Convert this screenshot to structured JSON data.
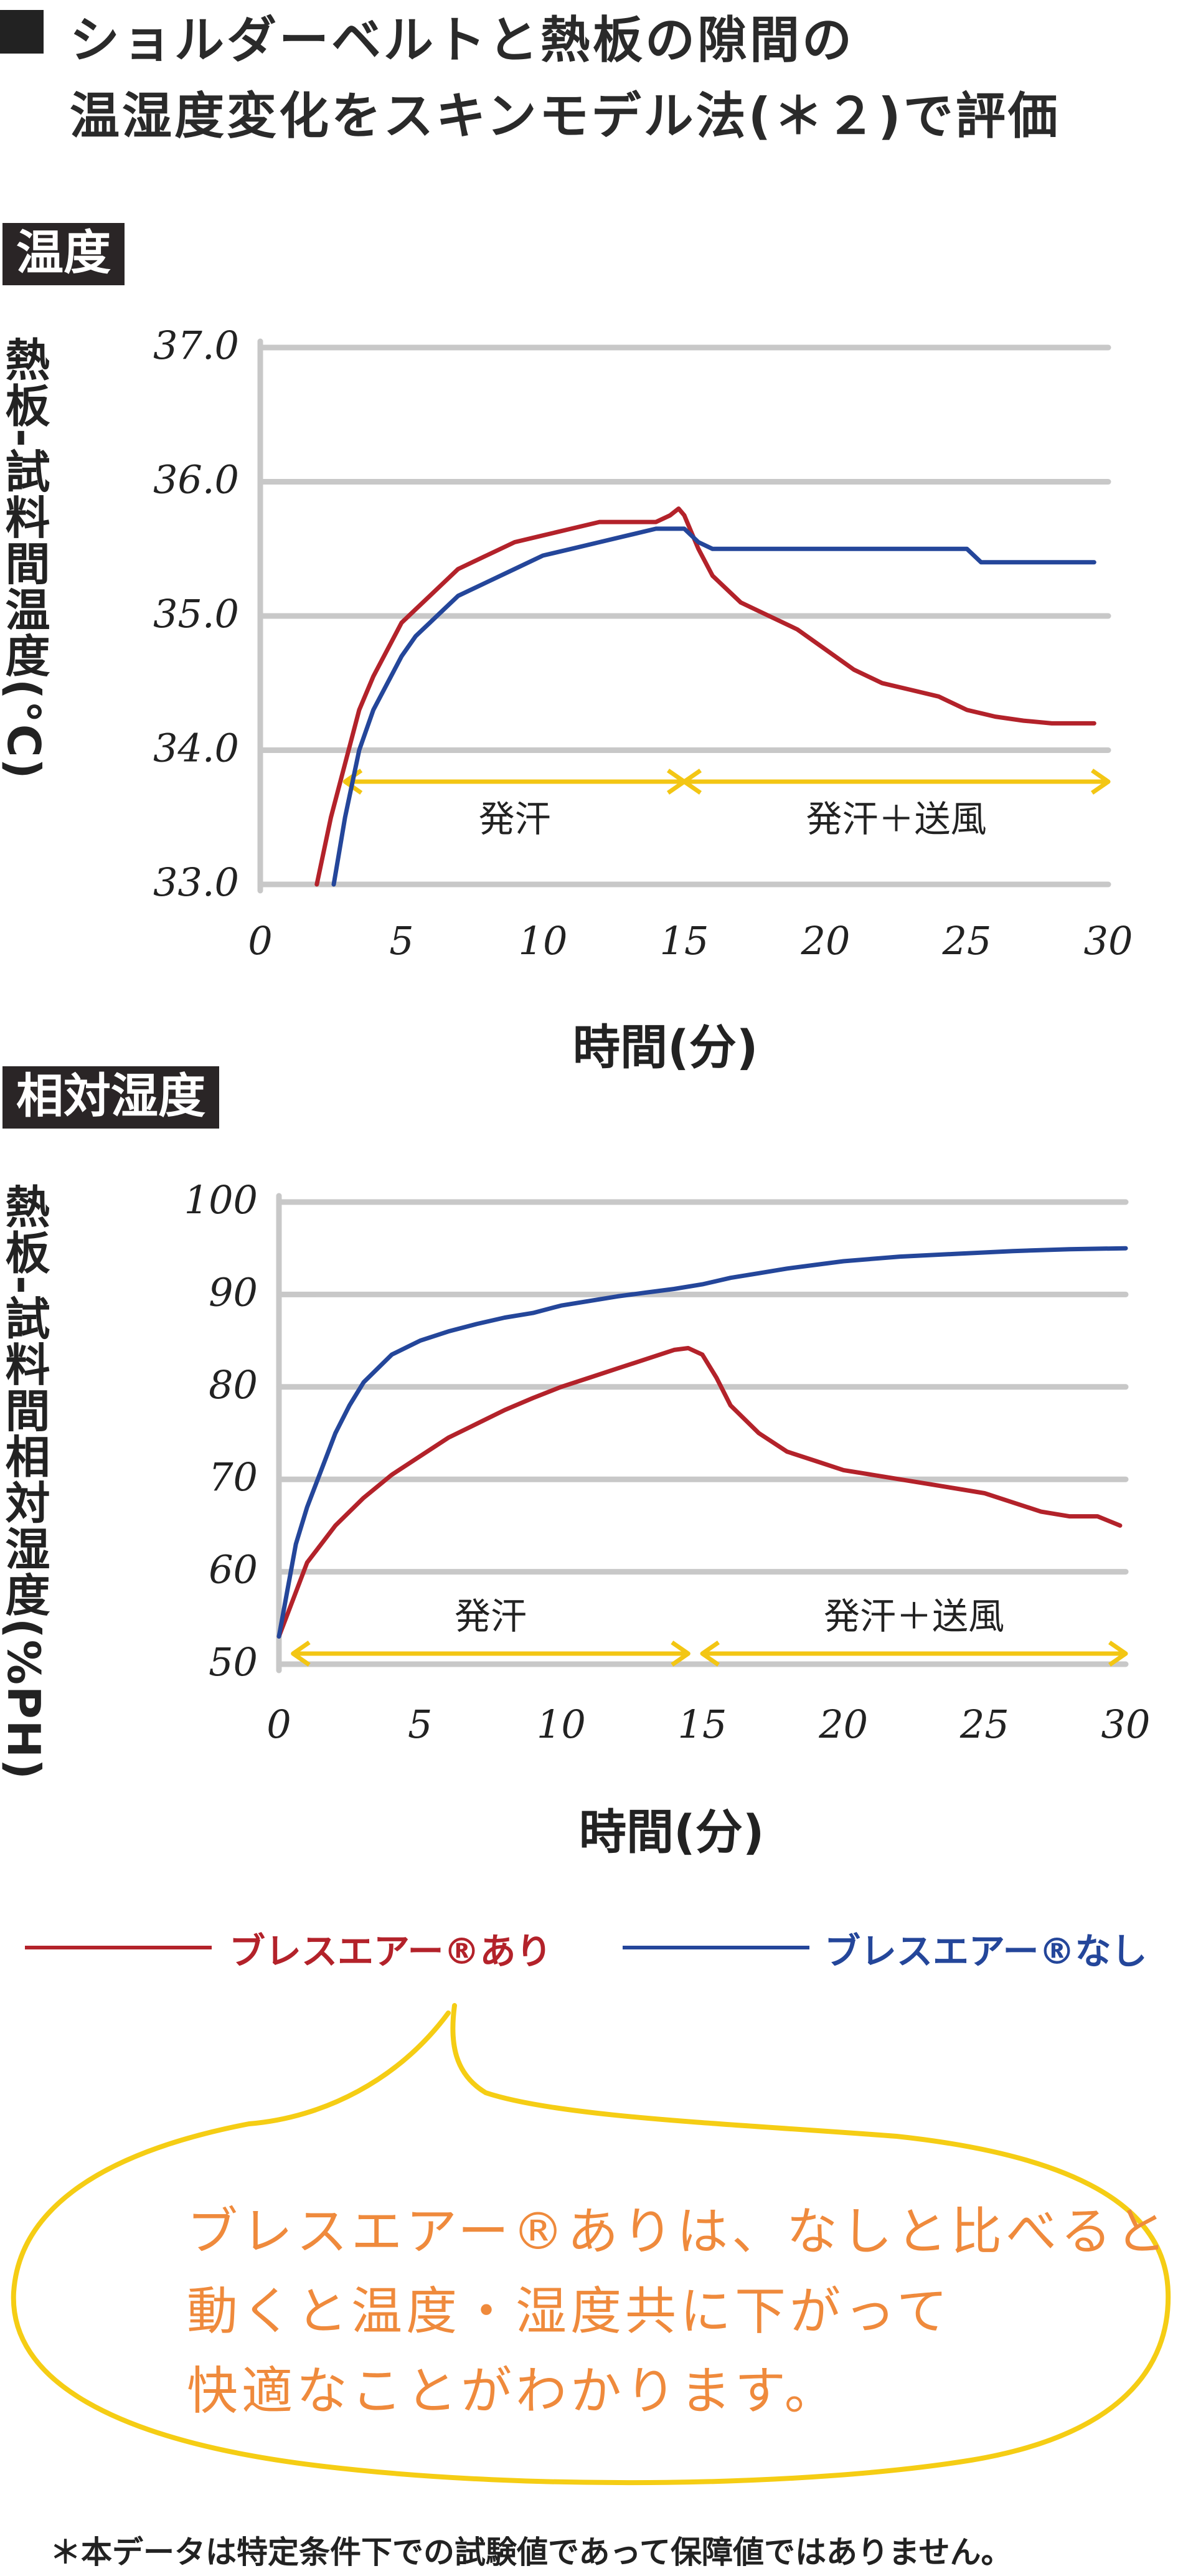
{
  "title": {
    "line1": "ショルダーベルトと熱板の隙間の",
    "line2": "温湿度変化をスキンモデル法(＊２)で評価"
  },
  "colors": {
    "with": "#b3222a",
    "without": "#24469a",
    "arrow": "#f3c614",
    "bubble": "#f5cd14",
    "bubble_text": "#ef8a3c",
    "grid": "#c8c8c8",
    "tag_bg": "#2a2526"
  },
  "legend": {
    "with": "ブレスエアー®あり",
    "without": "ブレスエアー®なし"
  },
  "bubble": {
    "lines": [
      "ブレスエアー®ありは、なしと比べると",
      "動くと温度・湿度共に下がって",
      "快適なことがわかります。"
    ]
  },
  "note": "＊本データは特定条件下での試験値であって保障値ではありません。",
  "chart_data": [
    {
      "type": "line",
      "section_label": "温度",
      "ylabel": "熱板-試料間温度(°C)",
      "xlabel": "時間(分)",
      "xlim": [
        0,
        30
      ],
      "ylim": [
        33,
        37
      ],
      "x_ticks": [
        "0",
        "5",
        "10",
        "15",
        "20",
        "25",
        "30"
      ],
      "y_ticks": [
        "33.0",
        "34.0",
        "35.0",
        "36.0",
        "37.0"
      ],
      "grid": true,
      "phases": [
        {
          "label": "発汗",
          "from": 3,
          "to": 15
        },
        {
          "label": "発汗＋送風",
          "from": 15,
          "to": 30
        }
      ],
      "series": [
        {
          "name": "ブレスエアー®あり",
          "color": "#b3222a",
          "points": [
            [
              2,
              33.0
            ],
            [
              2.5,
              33.5
            ],
            [
              3,
              33.9
            ],
            [
              3.5,
              34.3
            ],
            [
              4,
              34.55
            ],
            [
              4.5,
              34.75
            ],
            [
              5,
              34.95
            ],
            [
              5.5,
              35.05
            ],
            [
              6,
              35.15
            ],
            [
              6.5,
              35.25
            ],
            [
              7,
              35.35
            ],
            [
              8,
              35.45
            ],
            [
              9,
              35.55
            ],
            [
              10,
              35.6
            ],
            [
              11,
              35.65
            ],
            [
              12,
              35.7
            ],
            [
              13,
              35.7
            ],
            [
              14,
              35.7
            ],
            [
              14.5,
              35.75
            ],
            [
              14.8,
              35.8
            ],
            [
              15,
              35.75
            ],
            [
              15.5,
              35.5
            ],
            [
              16,
              35.3
            ],
            [
              17,
              35.1
            ],
            [
              18,
              35.0
            ],
            [
              19,
              34.9
            ],
            [
              20,
              34.75
            ],
            [
              21,
              34.6
            ],
            [
              22,
              34.5
            ],
            [
              23,
              34.45
            ],
            [
              24,
              34.4
            ],
            [
              25,
              34.3
            ],
            [
              26,
              34.25
            ],
            [
              27,
              34.22
            ],
            [
              28,
              34.2
            ],
            [
              29,
              34.2
            ],
            [
              29.5,
              34.2
            ]
          ]
        },
        {
          "name": "ブレスエアー®なし",
          "color": "#24469a",
          "points": [
            [
              2.6,
              33.0
            ],
            [
              3,
              33.5
            ],
            [
              3.5,
              34.0
            ],
            [
              4,
              34.3
            ],
            [
              4.5,
              34.5
            ],
            [
              5,
              34.7
            ],
            [
              5.5,
              34.85
            ],
            [
              6,
              34.95
            ],
            [
              6.5,
              35.05
            ],
            [
              7,
              35.15
            ],
            [
              8,
              35.25
            ],
            [
              9,
              35.35
            ],
            [
              10,
              35.45
            ],
            [
              11,
              35.5
            ],
            [
              12,
              35.55
            ],
            [
              13,
              35.6
            ],
            [
              14,
              35.65
            ],
            [
              15,
              35.65
            ],
            [
              15.5,
              35.55
            ],
            [
              16,
              35.5
            ],
            [
              18,
              35.5
            ],
            [
              20,
              35.5
            ],
            [
              22,
              35.5
            ],
            [
              24,
              35.5
            ],
            [
              25,
              35.5
            ],
            [
              25.5,
              35.4
            ],
            [
              27,
              35.4
            ],
            [
              29,
              35.4
            ],
            [
              29.5,
              35.4
            ]
          ]
        }
      ]
    },
    {
      "type": "line",
      "section_label": "相対湿度",
      "ylabel": "熱板-試料間相対湿度(%PH)",
      "xlabel": "時間(分)",
      "xlim": [
        0,
        30
      ],
      "ylim": [
        50,
        100
      ],
      "x_ticks": [
        "0",
        "5",
        "10",
        "15",
        "20",
        "25",
        "30"
      ],
      "y_ticks": [
        "50",
        "60",
        "70",
        "80",
        "90",
        "100"
      ],
      "grid": true,
      "phases": [
        {
          "label": "発汗",
          "from": 0.5,
          "to": 14.5
        },
        {
          "label": "発汗＋送風",
          "from": 15,
          "to": 30
        }
      ],
      "series": [
        {
          "name": "ブレスエアー®あり",
          "color": "#b3222a",
          "points": [
            [
              0,
              53
            ],
            [
              0.5,
              57
            ],
            [
              1,
              61
            ],
            [
              1.5,
              63
            ],
            [
              2,
              65
            ],
            [
              3,
              68
            ],
            [
              4,
              70.5
            ],
            [
              5,
              72.5
            ],
            [
              6,
              74.5
            ],
            [
              7,
              76
            ],
            [
              8,
              77.5
            ],
            [
              9,
              78.8
            ],
            [
              10,
              80
            ],
            [
              11,
              81
            ],
            [
              12,
              82
            ],
            [
              13,
              83
            ],
            [
              14,
              84
            ],
            [
              14.5,
              84.2
            ],
            [
              15,
              83.5
            ],
            [
              15.5,
              81
            ],
            [
              16,
              78
            ],
            [
              17,
              75
            ],
            [
              18,
              73
            ],
            [
              19,
              72
            ],
            [
              20,
              71
            ],
            [
              21,
              70.5
            ],
            [
              22,
              70
            ],
            [
              23,
              69.5
            ],
            [
              24,
              69
            ],
            [
              25,
              68.5
            ],
            [
              26,
              67.5
            ],
            [
              27,
              66.5
            ],
            [
              28,
              66
            ],
            [
              29,
              66
            ],
            [
              29.8,
              65
            ]
          ]
        },
        {
          "name": "ブレスエアー®なし",
          "color": "#24469a",
          "points": [
            [
              0,
              53
            ],
            [
              0.3,
              58
            ],
            [
              0.6,
              63
            ],
            [
              1,
              67
            ],
            [
              1.5,
              71
            ],
            [
              2,
              75
            ],
            [
              2.5,
              78
            ],
            [
              3,
              80.5
            ],
            [
              4,
              83.5
            ],
            [
              5,
              85
            ],
            [
              6,
              86
            ],
            [
              7,
              86.8
            ],
            [
              8,
              87.5
            ],
            [
              9,
              88
            ],
            [
              10,
              88.8
            ],
            [
              11,
              89.3
            ],
            [
              12,
              89.8
            ],
            [
              13,
              90.2
            ],
            [
              14,
              90.6
            ],
            [
              15,
              91.1
            ],
            [
              16,
              91.8
            ],
            [
              17,
              92.3
            ],
            [
              18,
              92.8
            ],
            [
              19,
              93.2
            ],
            [
              20,
              93.6
            ],
            [
              22,
              94.1
            ],
            [
              24,
              94.4
            ],
            [
              26,
              94.7
            ],
            [
              28,
              94.9
            ],
            [
              30,
              95
            ]
          ]
        }
      ]
    }
  ]
}
